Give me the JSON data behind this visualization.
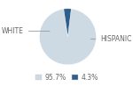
{
  "slices": [
    95.7,
    4.3
  ],
  "labels": [
    "WHITE",
    "HISPANIC"
  ],
  "colors": [
    "#cdd9e3",
    "#2e5f8a"
  ],
  "legend_labels": [
    "95.7%",
    "4.3%"
  ],
  "legend_colors": [
    "#cdd9e3",
    "#2e5f8a"
  ],
  "startangle": 83,
  "background_color": "#ffffff",
  "label_fontsize": 5.5,
  "legend_fontsize": 5.5
}
